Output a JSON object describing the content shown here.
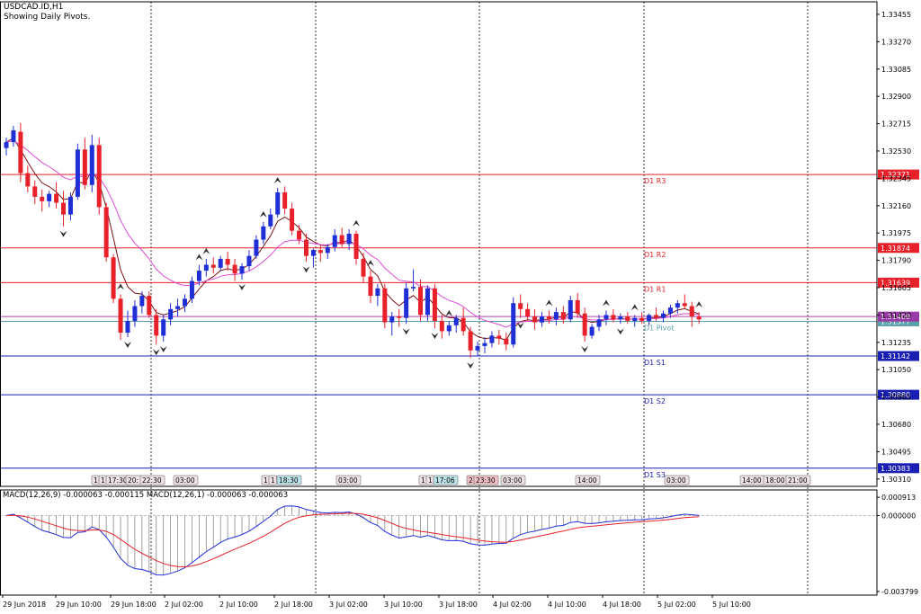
{
  "header": {
    "symbol_line": "USDCAD.ID,H1",
    "subtitle": "Showing Daily Pivots."
  },
  "macd_header": "MACD(12,26,9) -0.000063 -0.000115 MACD(12,26,1) -0.000063 -0.000063",
  "colors": {
    "bull": "#1f2fd6",
    "bear": "#e8202a",
    "resistance": "#e8202a",
    "support": "#1a1fb4",
    "pivot": "#5aa0a8",
    "ma_fast": "#7a1010",
    "ma_slow": "#e04ad8",
    "macd_main": "#1f2fd6",
    "macd_signal": "#e8202a"
  },
  "chart_data": {
    "type": "candlestick",
    "price_scale": {
      "min": 1.3026,
      "max": 1.3354,
      "ticks": [
        "1.33455",
        "1.33270",
        "1.33085",
        "1.32900",
        "1.32715",
        "1.32530",
        "1.32345",
        "1.32160",
        "1.31975",
        "1.31790",
        "1.31605",
        "1.31420",
        "1.31235",
        "1.31050",
        "1.30865",
        "1.30680",
        "1.30495",
        "1.30310"
      ],
      "tick_values": [
        1.33455,
        1.3327,
        1.33085,
        1.329,
        1.32715,
        1.3253,
        1.32345,
        1.3216,
        1.31975,
        1.3179,
        1.31605,
        1.3142,
        1.31235,
        1.3105,
        1.30865,
        1.3068,
        1.30495,
        1.3031
      ]
    },
    "time_labels": [
      "29 Jun 2018",
      "29 Jun 10:00",
      "29 Jun 18:00",
      "2 Jul 02:00",
      "2 Jul 10:00",
      "2 Jul 18:00",
      "3 Jul 02:00",
      "3 Jul 10:00",
      "3 Jul 18:00",
      "4 Jul 02:00",
      "4 Jul 10:00",
      "4 Jul 18:00",
      "5 Jul 02:00",
      "5 Jul 10:00"
    ],
    "pivot_levels": [
      {
        "name": "D1 R3",
        "value": 1.32371,
        "label": "1.32371",
        "kind": "resistance"
      },
      {
        "name": "D1 R2",
        "value": 1.31874,
        "label": "1.31874",
        "kind": "resistance"
      },
      {
        "name": "D1 R1",
        "value": 1.31639,
        "label": "1.31639",
        "kind": "resistance"
      },
      {
        "name": "D1 Pivot",
        "value": 1.31377,
        "label": "1.31377",
        "kind": "pivot"
      },
      {
        "name": "D1 S1",
        "value": 1.31142,
        "label": "1.31142",
        "kind": "support"
      },
      {
        "name": "D1 S2",
        "value": 1.3088,
        "label": "1.30880",
        "kind": "support"
      },
      {
        "name": "D1 S3",
        "value": 1.30383,
        "label": "1.30383",
        "kind": "support"
      }
    ],
    "current_price": {
      "value": 1.31409,
      "label": "1.31409"
    },
    "candles": [
      [
        1.3255,
        1.3262,
        1.325,
        1.3259
      ],
      [
        1.3259,
        1.327,
        1.3256,
        1.3267
      ],
      [
        1.3266,
        1.3272,
        1.3232,
        1.3238
      ],
      [
        1.3238,
        1.3243,
        1.3225,
        1.3229
      ],
      [
        1.3229,
        1.3233,
        1.3217,
        1.3222
      ],
      [
        1.3222,
        1.3227,
        1.3212,
        1.3219
      ],
      [
        1.3219,
        1.3226,
        1.3215,
        1.3224
      ],
      [
        1.3224,
        1.3232,
        1.3214,
        1.3218
      ],
      [
        1.3218,
        1.3226,
        1.3202,
        1.321
      ],
      [
        1.321,
        1.3225,
        1.3206,
        1.3222
      ],
      [
        1.3222,
        1.3258,
        1.322,
        1.3254
      ],
      [
        1.3254,
        1.3262,
        1.3227,
        1.323
      ],
      [
        1.323,
        1.3264,
        1.3225,
        1.3257
      ],
      [
        1.3257,
        1.3262,
        1.321,
        1.3215
      ],
      [
        1.3215,
        1.3218,
        1.3178,
        1.3181
      ],
      [
        1.3181,
        1.3183,
        1.315,
        1.3153
      ],
      [
        1.3153,
        1.3156,
        1.3125,
        1.313
      ],
      [
        1.313,
        1.3145,
        1.3127,
        1.3138
      ],
      [
        1.3138,
        1.3152,
        1.3134,
        1.3148
      ],
      [
        1.3148,
        1.3158,
        1.3143,
        1.3155
      ],
      [
        1.3155,
        1.3158,
        1.314,
        1.3142
      ],
      [
        1.3142,
        1.3146,
        1.3122,
        1.3128
      ],
      [
        1.3128,
        1.3142,
        1.3124,
        1.3139
      ],
      [
        1.3139,
        1.315,
        1.3135,
        1.3146
      ],
      [
        1.3146,
        1.3153,
        1.3141,
        1.3148
      ],
      [
        1.3148,
        1.3156,
        1.3144,
        1.3153
      ],
      [
        1.3153,
        1.3168,
        1.315,
        1.3165
      ],
      [
        1.3165,
        1.3176,
        1.3162,
        1.3172
      ],
      [
        1.3172,
        1.318,
        1.3168,
        1.3176
      ],
      [
        1.3176,
        1.3181,
        1.317,
        1.3174
      ],
      [
        1.3174,
        1.3182,
        1.3172,
        1.318
      ],
      [
        1.318,
        1.3185,
        1.3172,
        1.3176
      ],
      [
        1.3176,
        1.318,
        1.3165,
        1.317
      ],
      [
        1.317,
        1.3177,
        1.3166,
        1.3175
      ],
      [
        1.3175,
        1.3186,
        1.3172,
        1.3182
      ],
      [
        1.3182,
        1.3196,
        1.318,
        1.3193
      ],
      [
        1.3193,
        1.3205,
        1.319,
        1.3202
      ],
      [
        1.3202,
        1.3214,
        1.32,
        1.321
      ],
      [
        1.321,
        1.3228,
        1.3208,
        1.3225
      ],
      [
        1.3225,
        1.3229,
        1.321,
        1.3214
      ],
      [
        1.3214,
        1.3218,
        1.3196,
        1.3199
      ],
      [
        1.3199,
        1.3203,
        1.319,
        1.3193
      ],
      [
        1.3193,
        1.3197,
        1.3178,
        1.3182
      ],
      [
        1.3182,
        1.3187,
        1.3174,
        1.3186
      ],
      [
        1.3186,
        1.3189,
        1.3178,
        1.3184
      ],
      [
        1.3184,
        1.319,
        1.318,
        1.3188
      ],
      [
        1.3188,
        1.32,
        1.3185,
        1.3196
      ],
      [
        1.3196,
        1.3201,
        1.3188,
        1.319
      ],
      [
        1.319,
        1.32,
        1.3186,
        1.3197
      ],
      [
        1.3197,
        1.3199,
        1.3176,
        1.318
      ],
      [
        1.318,
        1.3184,
        1.3164,
        1.3168
      ],
      [
        1.3168,
        1.3172,
        1.315,
        1.3155
      ],
      [
        1.3155,
        1.3163,
        1.3148,
        1.316
      ],
      [
        1.316,
        1.3163,
        1.3133,
        1.3137
      ],
      [
        1.3137,
        1.3144,
        1.3128,
        1.3141
      ],
      [
        1.3141,
        1.3146,
        1.3134,
        1.314
      ],
      [
        1.314,
        1.3164,
        1.3136,
        1.316
      ],
      [
        1.316,
        1.3173,
        1.3158,
        1.3161
      ],
      [
        1.3161,
        1.3166,
        1.3138,
        1.3142
      ],
      [
        1.3142,
        1.3162,
        1.3138,
        1.316
      ],
      [
        1.316,
        1.3163,
        1.3133,
        1.3138
      ],
      [
        1.3138,
        1.3142,
        1.3126,
        1.3131
      ],
      [
        1.3131,
        1.3138,
        1.3128,
        1.3135
      ],
      [
        1.3135,
        1.3142,
        1.313,
        1.314
      ],
      [
        1.314,
        1.3147,
        1.3128,
        1.3131
      ],
      [
        1.3131,
        1.3134,
        1.3113,
        1.3118
      ],
      [
        1.3118,
        1.3124,
        1.3114,
        1.3121
      ],
      [
        1.3121,
        1.3127,
        1.3116,
        1.3123
      ],
      [
        1.3123,
        1.3131,
        1.312,
        1.3128
      ],
      [
        1.3128,
        1.3132,
        1.3122,
        1.3126
      ],
      [
        1.3126,
        1.313,
        1.3118,
        1.3122
      ],
      [
        1.3122,
        1.3154,
        1.312,
        1.315
      ],
      [
        1.315,
        1.3156,
        1.314,
        1.3146
      ],
      [
        1.3146,
        1.315,
        1.3138,
        1.3141
      ],
      [
        1.3141,
        1.3146,
        1.3132,
        1.3137
      ],
      [
        1.3137,
        1.3144,
        1.3134,
        1.3141
      ],
      [
        1.3141,
        1.3145,
        1.3136,
        1.3139
      ],
      [
        1.3139,
        1.3147,
        1.3135,
        1.3144
      ],
      [
        1.3144,
        1.3148,
        1.3136,
        1.3139
      ],
      [
        1.3139,
        1.3155,
        1.3137,
        1.3152
      ],
      [
        1.3152,
        1.3157,
        1.314,
        1.3143
      ],
      [
        1.3143,
        1.3147,
        1.3124,
        1.3128
      ],
      [
        1.3128,
        1.3136,
        1.3126,
        1.3134
      ],
      [
        1.3134,
        1.3142,
        1.3131,
        1.3139
      ],
      [
        1.3139,
        1.3145,
        1.3135,
        1.3142
      ],
      [
        1.3142,
        1.3146,
        1.3137,
        1.3139
      ],
      [
        1.3139,
        1.3143,
        1.3136,
        1.3141
      ],
      [
        1.3141,
        1.3144,
        1.3136,
        1.3138
      ],
      [
        1.3138,
        1.3142,
        1.3134,
        1.314
      ],
      [
        1.314,
        1.3144,
        1.3136,
        1.3138
      ],
      [
        1.3138,
        1.3143,
        1.3135,
        1.3142
      ],
      [
        1.3142,
        1.3147,
        1.3138,
        1.314
      ],
      [
        1.314,
        1.3145,
        1.3137,
        1.3143
      ],
      [
        1.3143,
        1.3149,
        1.314,
        1.3147
      ],
      [
        1.3147,
        1.3152,
        1.3143,
        1.315
      ],
      [
        1.315,
        1.3156,
        1.3146,
        1.3148
      ],
      [
        1.3148,
        1.3151,
        1.3134,
        1.3141
      ],
      [
        1.3141,
        1.3144,
        1.3136,
        1.3139
      ]
    ],
    "fractals_up": [
      16,
      27,
      28,
      36,
      38,
      49,
      51,
      62,
      76,
      84,
      88,
      97
    ],
    "fractals_down": [
      8,
      17,
      21,
      22,
      33,
      42,
      56,
      60,
      65,
      72,
      81,
      86
    ],
    "bottom_tags": [
      "1",
      "1",
      "17:30",
      "20:",
      "22:30",
      "03:00",
      "1",
      "1",
      "18:30",
      "03:00",
      "1",
      "1",
      "17:06",
      "2",
      "23:30",
      "03:00",
      "14:00",
      "03:00",
      "14:00",
      "18:00",
      "21:00"
    ],
    "macd": {
      "ticks": [
        "0.000913",
        "0.000000",
        "-0.003799"
      ],
      "tick_values": [
        0.000913,
        0.0,
        -0.003799
      ],
      "min": -0.0038,
      "max": 0.0011
    }
  }
}
